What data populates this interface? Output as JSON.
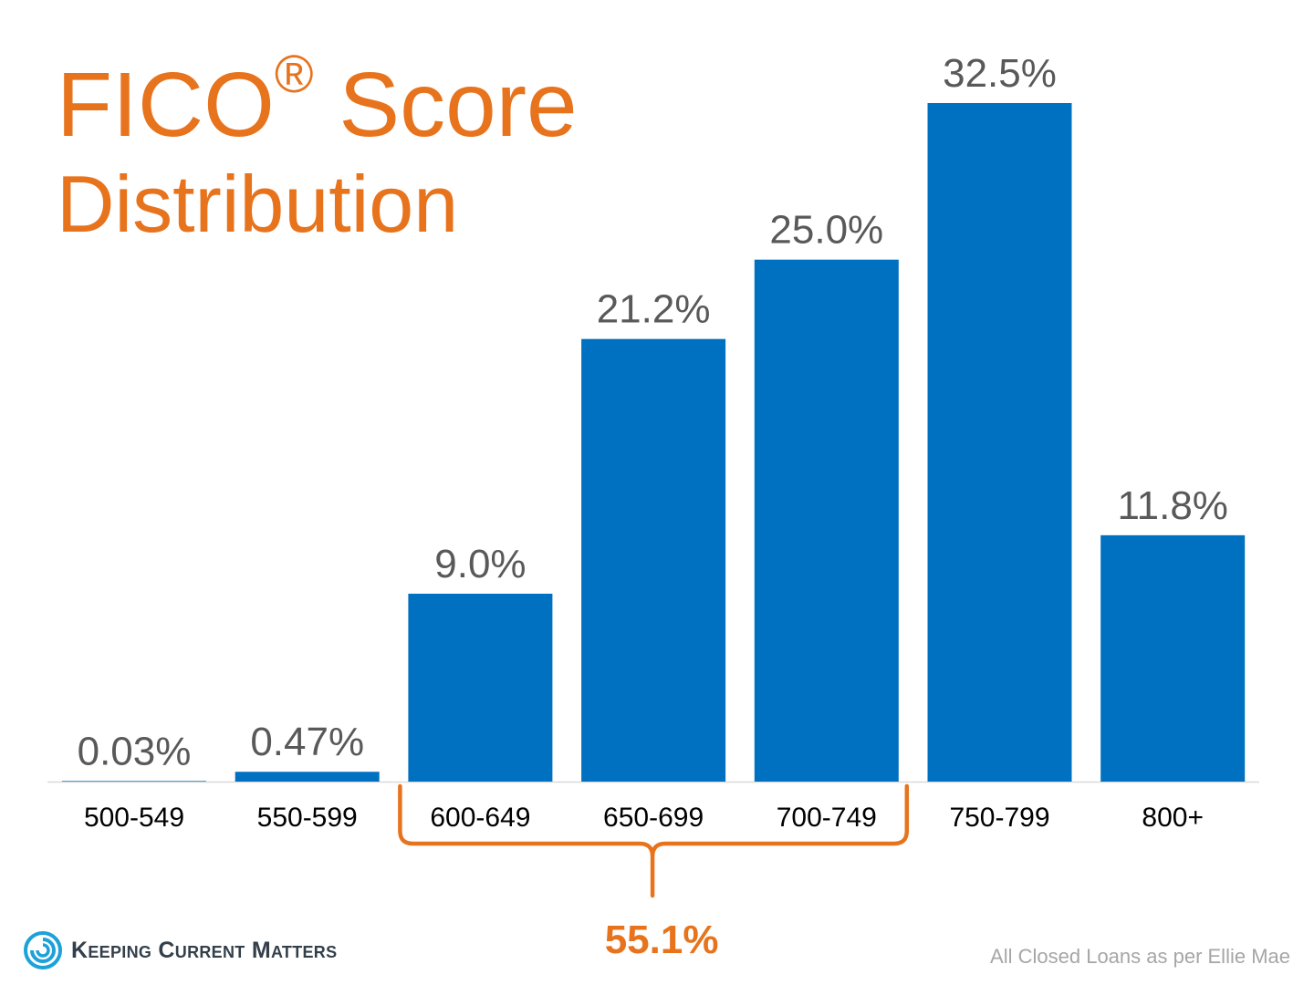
{
  "title": {
    "main": "FICO",
    "registered": "®",
    "main_suffix": " Score",
    "sub": "Distribution"
  },
  "chart_data": {
    "type": "bar",
    "title": "FICO® Score Distribution",
    "categories": [
      "500-549",
      "550-599",
      "600-649",
      "650-699",
      "700-749",
      "750-799",
      "800+"
    ],
    "values": [
      0.03,
      0.47,
      9.0,
      21.2,
      25.0,
      32.5,
      11.8
    ],
    "value_labels": [
      "0.03%",
      "0.47%",
      "9.0%",
      "21.2%",
      "25.0%",
      "32.5%",
      "11.8%"
    ],
    "ylim": [
      0,
      32.5
    ],
    "grid": false,
    "legend": "none",
    "bar_color": "#0070c0",
    "annotations": [
      {
        "type": "bracket",
        "categories": [
          "600-649",
          "650-699",
          "700-749"
        ],
        "label": "55.1%",
        "color": "#e8731d"
      }
    ]
  },
  "colors": {
    "title": "#e8731d",
    "bar": "#0070c0",
    "value_label": "#595959",
    "axis_label": "#000000",
    "source": "#a6a6a6"
  },
  "footer": {
    "logo_icon": "swirl-logo-icon",
    "brand": "Keeping Current Matters",
    "source": "All Closed Loans as per Ellie Mae"
  }
}
